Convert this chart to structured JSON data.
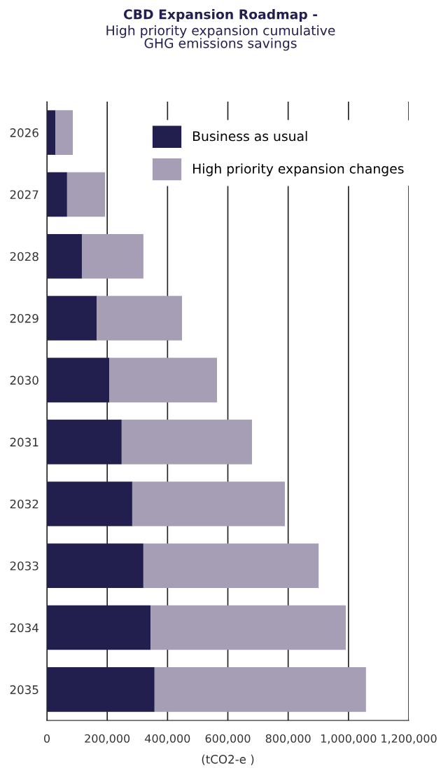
{
  "chart_data": {
    "type": "bar",
    "orientation": "horizontal",
    "stacked": true,
    "title": "CBD Expansion Roadmap -",
    "subtitle": "High priority expansion cumulative\nGHG emissions savings",
    "xlabel": "(tCO2-e )",
    "categories": [
      "2026",
      "2027",
      "2028",
      "2029",
      "2030",
      "2031",
      "2032",
      "2033",
      "2034",
      "2035"
    ],
    "series": [
      {
        "name": "Business as usual",
        "color": "#221f4f",
        "values": [
          28000,
          67000,
          116000,
          165000,
          207000,
          248000,
          283000,
          320000,
          344000,
          357000
        ]
      },
      {
        "name": "High priority expansion changes",
        "color": "#a59eb5",
        "values": [
          58000,
          126000,
          204000,
          283000,
          357000,
          432000,
          506000,
          581000,
          647000,
          701000
        ]
      }
    ],
    "xlim": [
      0,
      1200000
    ],
    "xticks": [
      {
        "value": 0,
        "label": "0"
      },
      {
        "value": 200000,
        "label": "200,000"
      },
      {
        "value": 400000,
        "label": "400,000"
      },
      {
        "value": 600000,
        "label": "600,000"
      },
      {
        "value": 800000,
        "label": "800,000"
      },
      {
        "value": 1000000,
        "label": "1,000,000"
      },
      {
        "value": 1200000,
        "label": "1,200,000"
      }
    ],
    "grid": "x",
    "legend": "top right"
  }
}
